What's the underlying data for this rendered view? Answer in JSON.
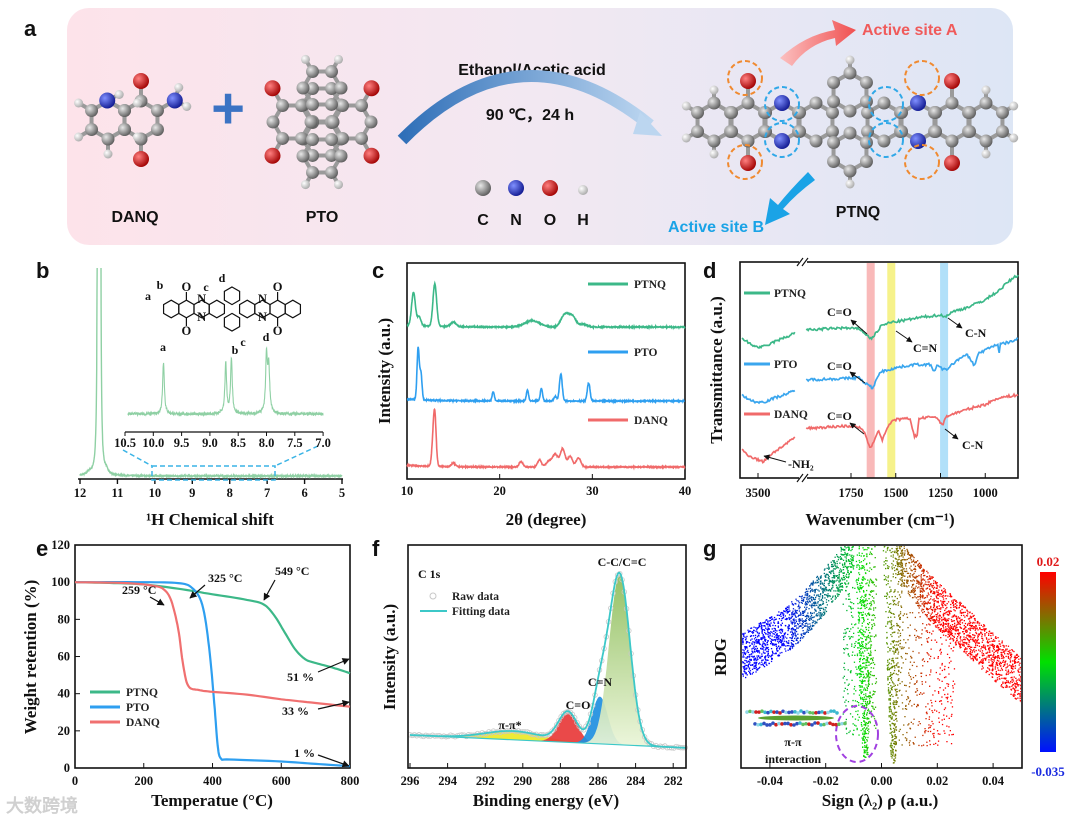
{
  "panel_labels": {
    "a": "a",
    "b": "b",
    "c": "c",
    "d": "d",
    "e": "e",
    "f": "f",
    "g": "g"
  },
  "scheme": {
    "reactant1": "DANQ",
    "reactant2": "PTO",
    "product": "PTNQ",
    "plus": "+",
    "conditions_solvent": "Ethanol/Acetic acid",
    "conditions_temp_time": "90 ℃，24 h",
    "active_site_a": "Active site A",
    "active_site_b": "Active site B",
    "atom_legend": [
      "C",
      "N",
      "O",
      "H"
    ],
    "colors": {
      "C": "#8c8c8c",
      "N": "#1f2fd0",
      "O": "#d01818",
      "H": "#e0e0e0",
      "site_a": "#f05a5a",
      "site_b": "#1aa3e6"
    }
  },
  "watermark": "大数跨境",
  "chart_data": [
    {
      "panel": "b",
      "type": "line",
      "xlabel": "¹H Chemical shift",
      "ylabel": "",
      "xlim": [
        12,
        5
      ],
      "xticks": [
        "12",
        "11",
        "10",
        "9",
        "8",
        "7",
        "6",
        "5"
      ],
      "main_peaks": [
        {
          "shift": 11.52,
          "intensity": 1.0
        },
        {
          "shift": 11.46,
          "intensity": 0.9
        }
      ],
      "inset": {
        "xlim": [
          10.5,
          7.0
        ],
        "xticks": [
          "10.5",
          "10.0",
          "9.5",
          "9.0",
          "8.5",
          "8.0",
          "7.5",
          "7.0"
        ],
        "peaks": [
          {
            "label": "a",
            "shift": 9.82,
            "intensity": 0.88
          },
          {
            "label": "b",
            "shift": 8.72,
            "intensity": 0.87
          },
          {
            "label": "c",
            "shift": 8.62,
            "intensity": 0.95
          },
          {
            "label": "d",
            "shift": 8.0,
            "intensity": 1.0
          }
        ],
        "structure_atoms": {
          "O": "O",
          "N": "N"
        }
      },
      "color": "#8fd0a4",
      "zoom_box_color": "#3ab4e6"
    },
    {
      "panel": "c",
      "type": "line",
      "xlabel": "2θ (degree)",
      "ylabel": "Intensity (a.u.)",
      "xlim": [
        10,
        40
      ],
      "xticks": [
        "10",
        "20",
        "30",
        "40"
      ],
      "series": [
        {
          "name": "PTNQ",
          "color": "#3cb888",
          "peaks": [
            [
              10.7,
              0.37,
              0.2
            ],
            [
              11.3,
              0.1,
              0.2
            ],
            [
              13.0,
              0.47,
              0.2
            ],
            [
              15.0,
              0.05,
              0.3
            ],
            [
              23.5,
              0.07,
              0.8
            ],
            [
              27.0,
              0.13,
              0.4
            ],
            [
              27.8,
              0.12,
              0.4
            ],
            [
              29.0,
              0.03,
              0.4
            ]
          ]
        },
        {
          "name": "PTO",
          "color": "#2e9ff0",
          "peaks": [
            [
              11.2,
              0.57,
              0.12
            ],
            [
              11.5,
              0.3,
              0.12
            ],
            [
              19.3,
              0.1,
              0.12
            ],
            [
              23.0,
              0.12,
              0.12
            ],
            [
              24.5,
              0.14,
              0.12
            ],
            [
              26.0,
              0.05,
              0.15
            ],
            [
              26.6,
              0.3,
              0.15
            ],
            [
              29.6,
              0.2,
              0.15
            ]
          ]
        },
        {
          "name": "DANQ",
          "color": "#f06a6a",
          "peaks": [
            [
              12.8,
              0.2,
              0.15
            ],
            [
              13.0,
              0.54,
              0.15
            ],
            [
              15.0,
              0.04,
              0.2
            ],
            [
              22.3,
              0.06,
              0.2
            ],
            [
              24.3,
              0.08,
              0.2
            ],
            [
              25.3,
              0.06,
              0.3
            ],
            [
              26.0,
              0.14,
              0.3
            ],
            [
              26.8,
              0.2,
              0.25
            ],
            [
              27.6,
              0.12,
              0.25
            ],
            [
              28.5,
              0.1,
              0.25
            ]
          ]
        }
      ]
    },
    {
      "panel": "d",
      "type": "line",
      "xlabel": "Wavenumber (cm⁻¹)",
      "ylabel": "Transmittance (a.u.)",
      "xticks": [
        "3500",
        "1750",
        "1500",
        "1250",
        "1000"
      ],
      "x_break": [
        3270,
        2000
      ],
      "highlight_bands_cm": [
        {
          "center": 1640,
          "color": "#f7a8a8"
        },
        {
          "center": 1525,
          "color": "#f4ef6e"
        },
        {
          "center": 1230,
          "color": "#9ed8f8"
        }
      ],
      "series": [
        {
          "name": "PTNQ",
          "color": "#3cb888",
          "left": [
            [
              3600,
              6.5
            ],
            [
              3550,
              6.2
            ],
            [
              3500,
              6.05
            ],
            [
              3450,
              6.1
            ],
            [
              3400,
              6.3
            ],
            [
              3300,
              6.6
            ],
            [
              3270,
              6.75
            ]
          ],
          "right": [
            [
              2000,
              6.85
            ],
            [
              1800,
              6.95
            ],
            [
              1700,
              6.9
            ],
            [
              1660,
              6.6
            ],
            [
              1640,
              6.45
            ],
            [
              1620,
              6.6
            ],
            [
              1580,
              7.05
            ],
            [
              1530,
              7.2
            ],
            [
              1450,
              7.3
            ],
            [
              1350,
              7.45
            ],
            [
              1250,
              7.55
            ],
            [
              1230,
              7.45
            ],
            [
              1180,
              7.7
            ],
            [
              1100,
              7.9
            ],
            [
              1000,
              8.25
            ],
            [
              920,
              8.7
            ],
            [
              870,
              9.1
            ],
            [
              817,
              9.4
            ]
          ]
        },
        {
          "name": "PTO",
          "color": "#3aa6ee",
          "left": [
            [
              3600,
              3.85
            ],
            [
              3550,
              3.6
            ],
            [
              3500,
              3.5
            ],
            [
              3450,
              3.55
            ],
            [
              3400,
              3.7
            ],
            [
              3300,
              3.95
            ],
            [
              3270,
              4.05
            ]
          ],
          "right": [
            [
              2000,
              4.55
            ],
            [
              1800,
              4.6
            ],
            [
              1700,
              4.65
            ],
            [
              1680,
              4.4
            ],
            [
              1650,
              4.3
            ],
            [
              1630,
              4.15
            ],
            [
              1610,
              4.5
            ],
            [
              1590,
              4.9
            ],
            [
              1500,
              5.1
            ],
            [
              1400,
              5.25
            ],
            [
              1310,
              5.25
            ],
            [
              1285,
              4.95
            ],
            [
              1270,
              5.2
            ],
            [
              1240,
              5.05
            ],
            [
              1220,
              5.0
            ],
            [
              1150,
              5.5
            ],
            [
              1100,
              5.7
            ],
            [
              1060,
              5.2
            ],
            [
              1040,
              5.75
            ],
            [
              960,
              6.1
            ],
            [
              930,
              6.2
            ],
            [
              922,
              5.75
            ],
            [
              915,
              6.2
            ],
            [
              860,
              6.3
            ],
            [
              817,
              6.45
            ]
          ]
        },
        {
          "name": "DANQ",
          "color": "#f06a6a",
          "left": [
            [
              3600,
              1.3
            ],
            [
              3550,
              1.0
            ],
            [
              3500,
              0.85
            ],
            [
              3470,
              0.75
            ],
            [
              3440,
              0.95
            ],
            [
              3400,
              1.2
            ],
            [
              3300,
              1.7
            ],
            [
              3270,
              1.9
            ]
          ],
          "right": [
            [
              2000,
              2.3
            ],
            [
              1800,
              2.4
            ],
            [
              1720,
              2.4
            ],
            [
              1680,
              2.2
            ],
            [
              1650,
              1.5
            ],
            [
              1635,
              1.4
            ],
            [
              1610,
              2.0
            ],
            [
              1595,
              2.2
            ],
            [
              1575,
              1.75
            ],
            [
              1560,
              2.1
            ],
            [
              1530,
              2.55
            ],
            [
              1500,
              2.7
            ],
            [
              1420,
              2.75
            ],
            [
              1395,
              1.9
            ],
            [
              1380,
              2.0
            ],
            [
              1370,
              2.75
            ],
            [
              1280,
              2.85
            ],
            [
              1235,
              2.45
            ],
            [
              1220,
              2.85
            ],
            [
              1150,
              3.05
            ],
            [
              1050,
              3.3
            ],
            [
              1000,
              3.4
            ],
            [
              930,
              3.7
            ],
            [
              817,
              3.85
            ]
          ]
        }
      ],
      "annotations": [
        "C=O",
        "C=N",
        "C-N",
        "C=O",
        "C=O",
        "C-N",
        "-NH₂"
      ]
    },
    {
      "panel": "e",
      "type": "line",
      "xlabel": "Temperatue (°C)",
      "ylabel": "Weight retention (%)",
      "xlim": [
        0,
        800
      ],
      "ylim": [
        0,
        120
      ],
      "xticks": [
        "0",
        "200",
        "400",
        "600",
        "800"
      ],
      "yticks": [
        "0",
        "20",
        "40",
        "60",
        "80",
        "100",
        "120"
      ],
      "series": [
        {
          "name": "PTNQ",
          "color": "#3cb888",
          "points": [
            [
              0,
              100
            ],
            [
              100,
              99.6
            ],
            [
              200,
              98.8
            ],
            [
              300,
              96.5
            ],
            [
              400,
              93.5
            ],
            [
              500,
              90.5
            ],
            [
              549,
              88
            ],
            [
              580,
              82
            ],
            [
              610,
              73
            ],
            [
              640,
              64
            ],
            [
              670,
              58.5
            ],
            [
              700,
              56.5
            ],
            [
              750,
              54
            ],
            [
              800,
              51
            ]
          ]
        },
        {
          "name": "PTO",
          "color": "#2e9ff0",
          "points": [
            [
              0,
              100
            ],
            [
              200,
              100
            ],
            [
              300,
              99.5
            ],
            [
              340,
              97
            ],
            [
              370,
              88
            ],
            [
              390,
              65
            ],
            [
              405,
              35
            ],
            [
              415,
              12
            ],
            [
              425,
              5
            ],
            [
              450,
              4.6
            ],
            [
              600,
              3.5
            ],
            [
              700,
              2.2
            ],
            [
              800,
              1
            ]
          ]
        },
        {
          "name": "DANQ",
          "color": "#f07070",
          "points": [
            [
              0,
              100
            ],
            [
              150,
              99.5
            ],
            [
              230,
              98
            ],
            [
              259,
              96
            ],
            [
              280,
              90
            ],
            [
              300,
              75
            ],
            [
              315,
              55
            ],
            [
              330,
              44
            ],
            [
              360,
              42
            ],
            [
              400,
              41
            ],
            [
              500,
              39.5
            ],
            [
              600,
              37
            ],
            [
              700,
              35
            ],
            [
              800,
              33
            ]
          ]
        }
      ],
      "annotations": [
        "259 °C",
        "325 °C",
        "549 °C",
        "51 %",
        "33 %",
        "1 %"
      ]
    },
    {
      "panel": "f",
      "type": "area",
      "title": "C 1s",
      "xlabel": "Binding energy (eV)",
      "ylabel": "Intensity (a.u.)",
      "xlim": [
        296,
        281.3
      ],
      "xticks": [
        "296",
        "294",
        "292",
        "290",
        "288",
        "286",
        "284",
        "282"
      ],
      "legend": [
        "Raw data",
        "Fitting data"
      ],
      "fit_color": "#3cc8c8",
      "components": [
        {
          "name": "π-π*",
          "center": 290.5,
          "height": 0.05,
          "sigma": 1.5,
          "color": "#ece826"
        },
        {
          "name": "C=O",
          "center": 287.6,
          "height": 0.17,
          "sigma": 0.5,
          "color": "#e83a3a"
        },
        {
          "name": "C=N",
          "center": 285.9,
          "height": 0.27,
          "sigma": 0.42,
          "color": "#1f8fe0"
        },
        {
          "name": "C-C/C=C",
          "center": 284.85,
          "height": 0.97,
          "sigma": 0.55,
          "color": "#9cc46a"
        }
      ],
      "baseline": [
        [
          296,
          0.0
        ],
        [
          282,
          -0.07
        ]
      ]
    },
    {
      "panel": "g",
      "type": "scatter",
      "xlabel": "Sign (λ₂) ρ (a.u.)",
      "ylabel": "RDG",
      "xlim": [
        -0.05,
        0.05
      ],
      "ylim": [
        0,
        2
      ],
      "xticks": [
        "-0.04",
        "-0.02",
        "0.00",
        "0.02",
        "0.04"
      ],
      "colorbar": {
        "min": "-0.035",
        "max": "0.02",
        "colors": [
          "#0010ff",
          "#00e000",
          "#ff0000"
        ]
      },
      "branches": {
        "attractive": [
          [
            -0.05,
            1.01
          ],
          [
            -0.04,
            1.15
          ],
          [
            -0.03,
            1.33
          ],
          [
            -0.02,
            1.6
          ],
          [
            -0.015,
            1.78
          ],
          [
            -0.01,
            2.0
          ]
        ],
        "repulsive": [
          [
            0.005,
            2.0
          ],
          [
            0.01,
            1.73
          ],
          [
            0.02,
            1.46
          ],
          [
            0.03,
            1.24
          ],
          [
            0.04,
            1.0
          ],
          [
            0.05,
            0.79
          ]
        ],
        "spikes": [
          [
            -0.006,
            0.1
          ],
          [
            0.004,
            0.05
          ]
        ]
      },
      "annotation": [
        "π-π",
        "interaction"
      ],
      "annotation_color": "#a040e0"
    }
  ]
}
